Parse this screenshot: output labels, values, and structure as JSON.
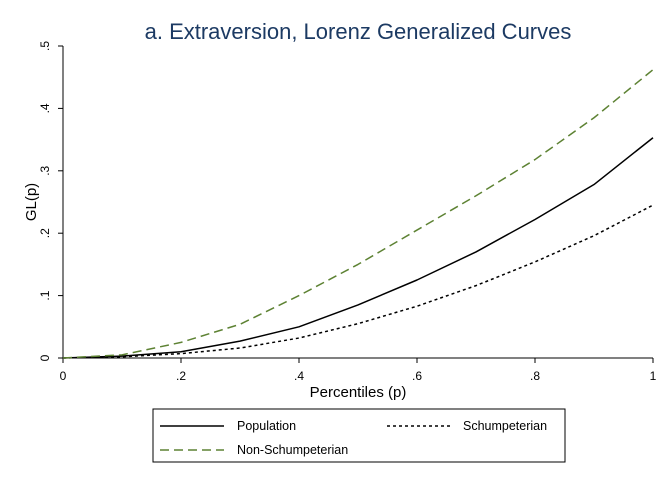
{
  "chart_data": {
    "type": "line",
    "title": "a. Extraversion, Lorenz Generalized Curves",
    "xlabel": "Percentiles (p)",
    "ylabel": "GL(p)",
    "xlim": [
      0,
      1
    ],
    "ylim": [
      0,
      0.5
    ],
    "x_ticks": [
      0,
      0.2,
      0.4,
      0.6,
      0.8,
      1
    ],
    "x_tick_labels": [
      "0",
      ".2",
      ".4",
      ".6",
      ".8",
      "1"
    ],
    "y_ticks": [
      0,
      0.1,
      0.2,
      0.3,
      0.4,
      0.5
    ],
    "y_tick_labels": [
      "0",
      ".1",
      ".2",
      ".3",
      ".4",
      ".5"
    ],
    "grid": false,
    "legend_position": "bottom",
    "x": [
      0,
      0.1,
      0.2,
      0.3,
      0.4,
      0.5,
      0.6,
      0.7,
      0.8,
      0.9,
      1.0
    ],
    "series": [
      {
        "name": "Population",
        "style": "solid",
        "color": "#000000",
        "values": [
          0,
          0.003,
          0.01,
          0.027,
          0.05,
          0.085,
          0.125,
          0.17,
          0.222,
          0.278,
          0.353
        ]
      },
      {
        "name": "Schumpeterian",
        "style": "dotted",
        "color": "#000000",
        "values": [
          0,
          0.002,
          0.007,
          0.016,
          0.032,
          0.055,
          0.083,
          0.116,
          0.154,
          0.196,
          0.245
        ]
      },
      {
        "name": "Non-Schumpeterian",
        "style": "dashed",
        "color": "#5d8233",
        "values": [
          0,
          0.005,
          0.025,
          0.054,
          0.1,
          0.15,
          0.205,
          0.26,
          0.318,
          0.385,
          0.462
        ]
      }
    ]
  }
}
